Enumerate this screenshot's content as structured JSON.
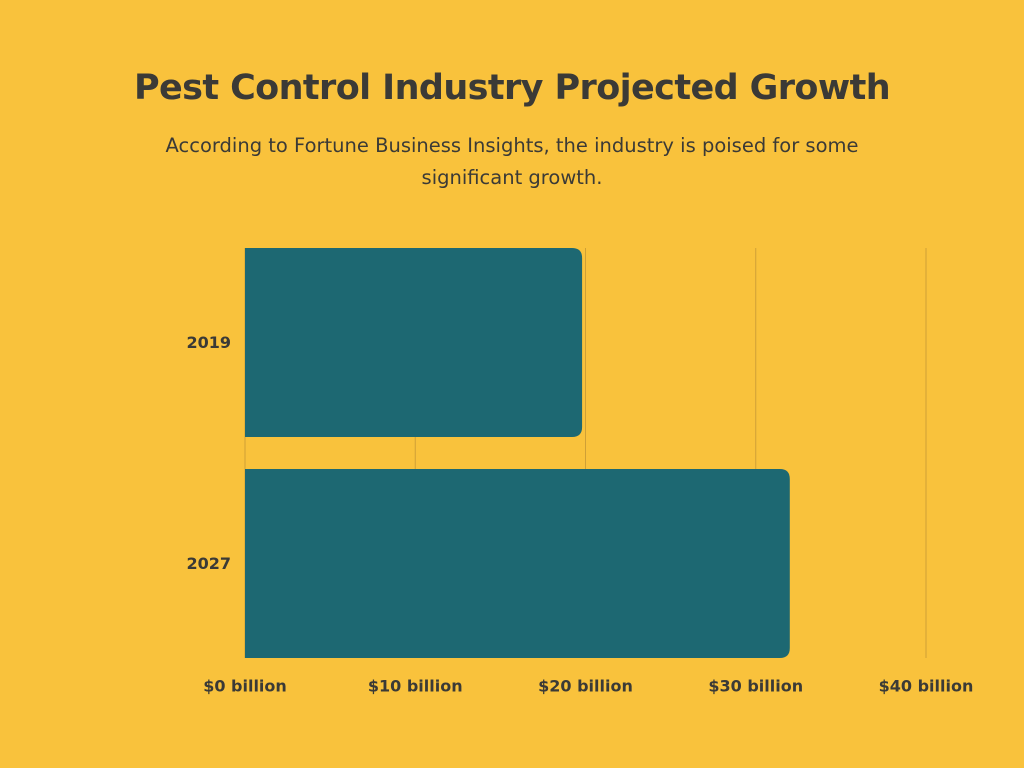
{
  "colors": {
    "background": "#F9C23C",
    "bar": "#1D6872",
    "text": "#3B3A36",
    "grid": "#CFA036"
  },
  "chart_data": {
    "type": "bar",
    "orientation": "horizontal",
    "title": "Pest Control Industry Projected Growth",
    "subtitle": "According to Fortune Business Insights, the industry is poised for some significant growth.",
    "categories": [
      "2019",
      "2027"
    ],
    "values": [
      19.8,
      32
    ],
    "unit": "billion USD",
    "xlim": [
      0,
      40
    ],
    "xticks": [
      0,
      10,
      20,
      30,
      40
    ],
    "xtick_labels": [
      "$0 billion",
      "$10 billion",
      "$20 billion",
      "$30 billion",
      "$40 billion"
    ],
    "grid": true,
    "legend": "none"
  }
}
